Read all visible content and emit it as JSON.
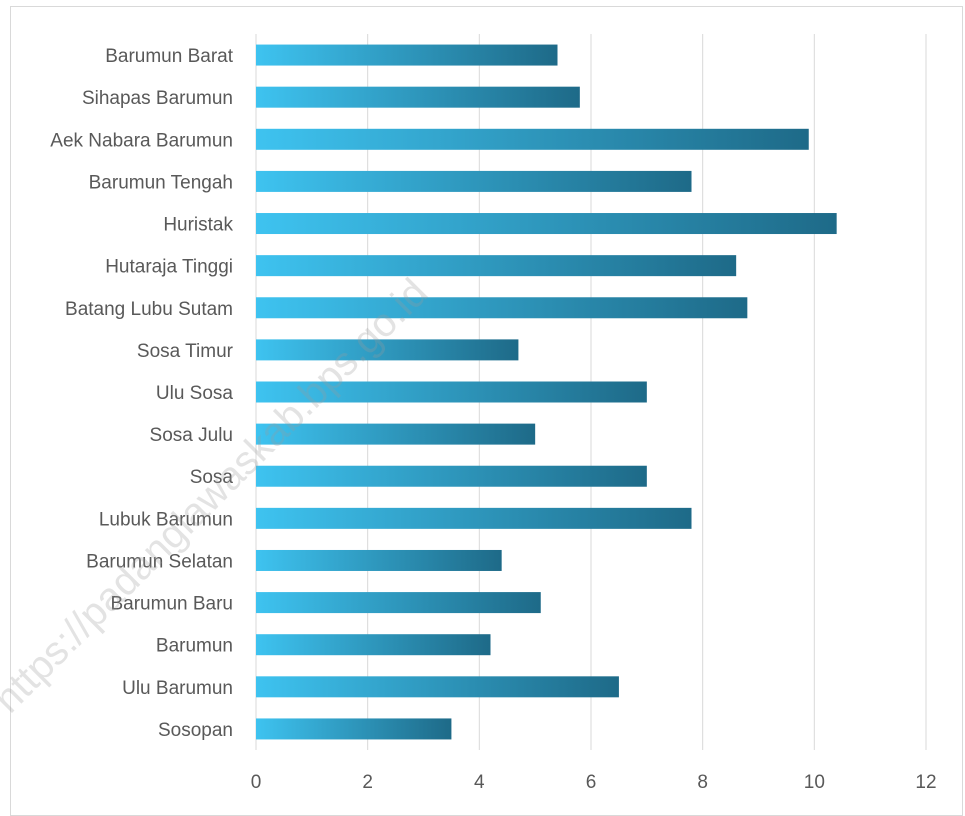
{
  "chart_data": {
    "type": "bar",
    "orientation": "horizontal",
    "categories": [
      "Barumun Barat",
      "Sihapas Barumun",
      "Aek Nabara Barumun",
      "Barumun Tengah",
      "Huristak",
      "Hutaraja Tinggi",
      "Batang Lubu Sutam",
      "Sosa Timur",
      "Ulu Sosa",
      "Sosa Julu",
      "Sosa",
      "Lubuk Barumun",
      "Barumun Selatan",
      "Barumun Baru",
      "Barumun",
      "Ulu Barumun",
      "Sosopan"
    ],
    "values": [
      5.4,
      5.8,
      9.9,
      7.8,
      10.4,
      8.6,
      8.8,
      4.7,
      7.0,
      5.0,
      7.0,
      7.8,
      4.4,
      5.1,
      4.2,
      6.5,
      3.5
    ],
    "xlim": [
      0,
      12
    ],
    "xticks": [
      "0",
      "2",
      "4",
      "6",
      "8",
      "10",
      "12"
    ],
    "grid": "vertical",
    "title": "",
    "xlabel": "",
    "ylabel": "",
    "colors": {
      "bar_light": "#3ec3f0",
      "bar_dark": "#1e6a88",
      "grid": "#d9d9d9",
      "text": "#595959"
    }
  },
  "watermark": "https://padanglawaskab.bps.go.id"
}
